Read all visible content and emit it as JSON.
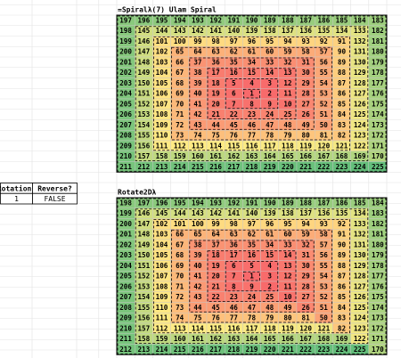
{
  "top": {
    "title": "=Spiralλ(7) Ulam Spiral",
    "rows": [
      [
        197,
        196,
        195,
        194,
        193,
        192,
        191,
        190,
        189,
        188,
        187,
        186,
        185,
        184,
        183
      ],
      [
        198,
        145,
        144,
        143,
        142,
        141,
        140,
        139,
        138,
        137,
        136,
        135,
        134,
        133,
        182
      ],
      [
        199,
        146,
        101,
        100,
        99,
        98,
        97,
        96,
        95,
        94,
        93,
        92,
        91,
        132,
        181
      ],
      [
        200,
        147,
        102,
        65,
        64,
        63,
        62,
        61,
        60,
        59,
        58,
        57,
        90,
        131,
        180
      ],
      [
        201,
        148,
        103,
        66,
        37,
        36,
        35,
        34,
        33,
        32,
        31,
        56,
        89,
        130,
        179
      ],
      [
        202,
        149,
        104,
        67,
        38,
        17,
        16,
        15,
        14,
        13,
        30,
        55,
        88,
        129,
        178
      ],
      [
        203,
        150,
        105,
        68,
        39,
        18,
        5,
        4,
        3,
        12,
        29,
        54,
        87,
        128,
        177
      ],
      [
        204,
        151,
        106,
        69,
        40,
        19,
        6,
        1,
        2,
        11,
        28,
        53,
        86,
        127,
        176
      ],
      [
        205,
        152,
        107,
        70,
        41,
        20,
        7,
        8,
        9,
        10,
        27,
        52,
        85,
        126,
        175
      ],
      [
        206,
        153,
        108,
        71,
        42,
        21,
        22,
        23,
        24,
        25,
        26,
        51,
        84,
        125,
        174
      ],
      [
        207,
        154,
        109,
        72,
        43,
        44,
        45,
        46,
        47,
        48,
        49,
        50,
        83,
        124,
        173
      ],
      [
        208,
        155,
        110,
        73,
        74,
        75,
        76,
        77,
        78,
        79,
        80,
        81,
        82,
        123,
        172
      ],
      [
        209,
        156,
        111,
        112,
        113,
        114,
        115,
        116,
        117,
        118,
        119,
        120,
        121,
        122,
        171
      ],
      [
        210,
        157,
        158,
        159,
        160,
        161,
        162,
        163,
        164,
        165,
        166,
        167,
        168,
        169,
        170
      ],
      [
        211,
        212,
        213,
        214,
        215,
        216,
        217,
        218,
        219,
        220,
        221,
        222,
        223,
        224,
        225
      ]
    ]
  },
  "bottom": {
    "title": "Rotate2Dλ",
    "rows": [
      [
        198,
        197,
        196,
        195,
        194,
        193,
        192,
        191,
        190,
        189,
        188,
        187,
        186,
        185,
        184
      ],
      [
        199,
        146,
        145,
        144,
        143,
        142,
        141,
        140,
        139,
        138,
        137,
        136,
        135,
        134,
        183
      ],
      [
        200,
        147,
        102,
        101,
        100,
        99,
        98,
        97,
        96,
        95,
        94,
        93,
        92,
        133,
        182
      ],
      [
        201,
        148,
        103,
        66,
        65,
        64,
        63,
        62,
        61,
        60,
        59,
        58,
        91,
        132,
        181
      ],
      [
        202,
        149,
        104,
        67,
        38,
        37,
        36,
        35,
        34,
        33,
        32,
        57,
        90,
        131,
        180
      ],
      [
        203,
        150,
        105,
        68,
        39,
        18,
        17,
        16,
        15,
        14,
        31,
        56,
        89,
        130,
        179
      ],
      [
        204,
        151,
        106,
        69,
        40,
        19,
        6,
        5,
        4,
        13,
        30,
        55,
        88,
        129,
        178
      ],
      [
        205,
        152,
        107,
        70,
        41,
        20,
        7,
        1,
        3,
        12,
        29,
        54,
        87,
        128,
        177
      ],
      [
        206,
        153,
        108,
        71,
        42,
        21,
        8,
        9,
        2,
        11,
        28,
        53,
        86,
        127,
        176
      ],
      [
        207,
        154,
        109,
        72,
        43,
        22,
        23,
        24,
        25,
        10,
        27,
        52,
        85,
        126,
        175
      ],
      [
        208,
        155,
        110,
        73,
        44,
        45,
        46,
        47,
        48,
        49,
        26,
        51,
        84,
        125,
        174
      ],
      [
        209,
        156,
        111,
        74,
        75,
        76,
        77,
        78,
        79,
        80,
        81,
        50,
        83,
        124,
        173
      ],
      [
        210,
        157,
        112,
        113,
        114,
        115,
        116,
        117,
        118,
        119,
        120,
        121,
        82,
        123,
        172
      ],
      [
        211,
        158,
        159,
        160,
        161,
        162,
        163,
        164,
        165,
        166,
        167,
        168,
        169,
        122,
        171
      ],
      [
        212,
        213,
        214,
        215,
        216,
        217,
        218,
        219,
        220,
        221,
        222,
        223,
        224,
        225,
        170
      ]
    ]
  },
  "params": {
    "headers": [
      "Rotations",
      "Reverse?"
    ],
    "values": [
      1,
      "FALSE"
    ]
  }
}
